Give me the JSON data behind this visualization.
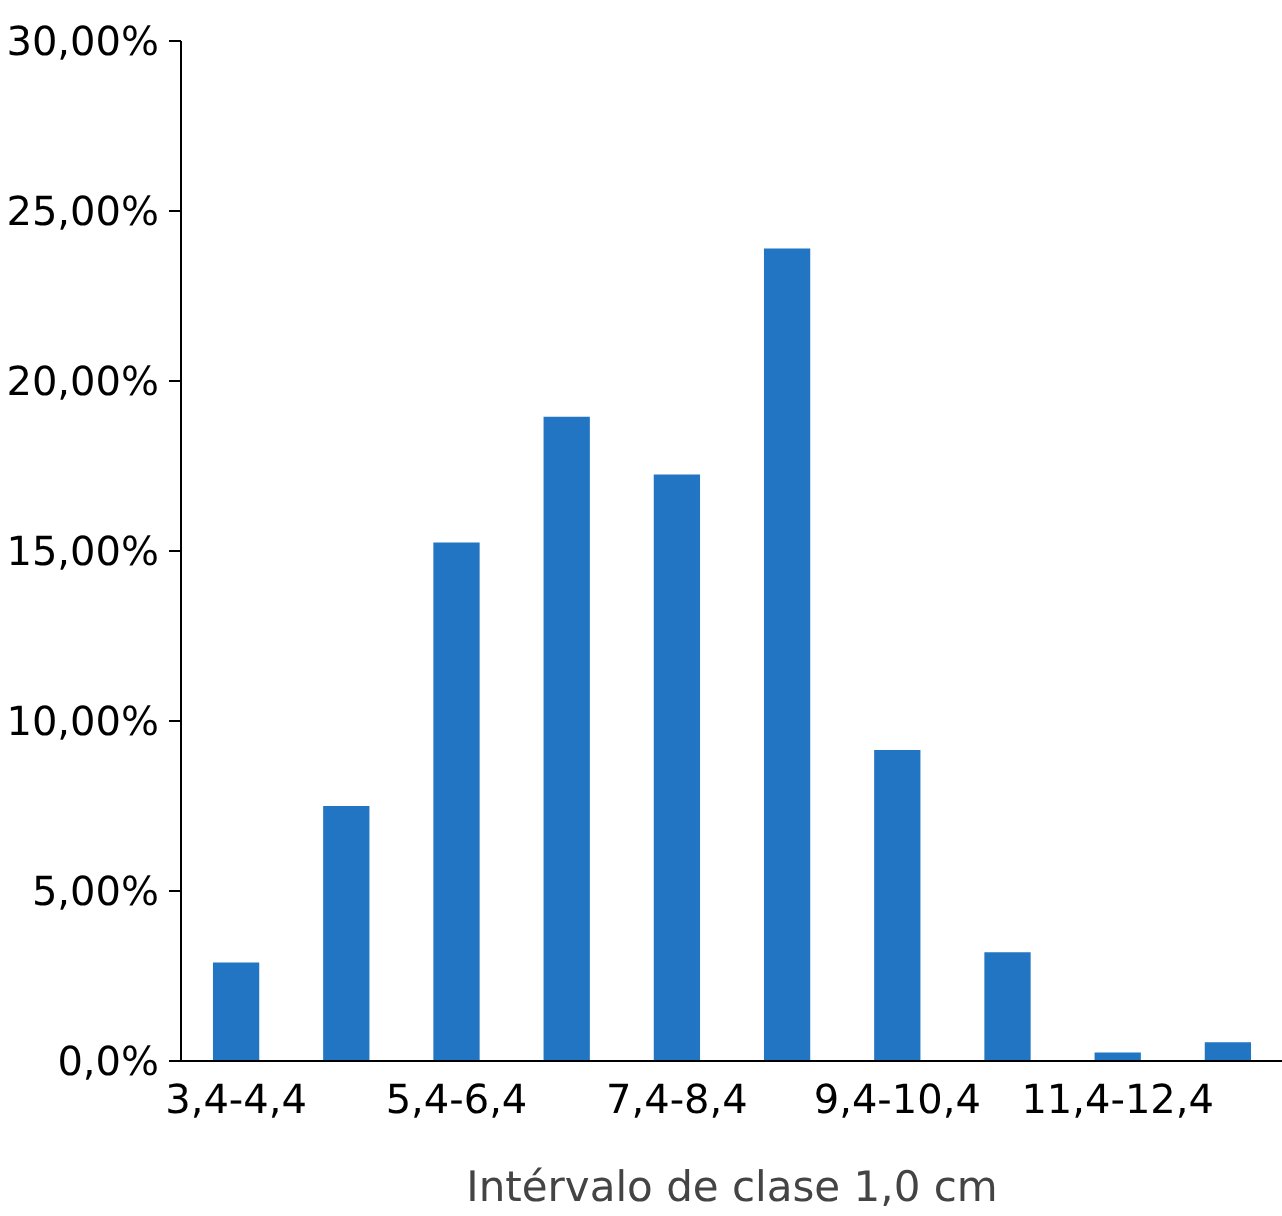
{
  "chart_data": {
    "type": "bar",
    "xlabel": "Intérvalo de clase 1,0 cm",
    "categories": [
      "3,4-4,4",
      null,
      "5,4-6,4",
      null,
      "7,4-8,4",
      null,
      "9,4-10,4",
      null,
      "11,4-12,4",
      null
    ],
    "values": [
      2.9,
      7.5,
      15.25,
      18.95,
      17.25,
      23.9,
      9.15,
      3.2,
      0.25,
      0.55
    ],
    "color": "#2175c2",
    "ylim": [
      0,
      30
    ],
    "yticks": [
      {
        "value": 0,
        "label": "0,0%"
      },
      {
        "value": 5,
        "label": "5,00%"
      },
      {
        "value": 10,
        "label": "10,00%"
      },
      {
        "value": 15,
        "label": "15,00%"
      },
      {
        "value": 20,
        "label": "20,00%"
      },
      {
        "value": 25,
        "label": "25,00%"
      },
      {
        "value": 30,
        "label": "30,00%"
      }
    ],
    "grid": false
  }
}
